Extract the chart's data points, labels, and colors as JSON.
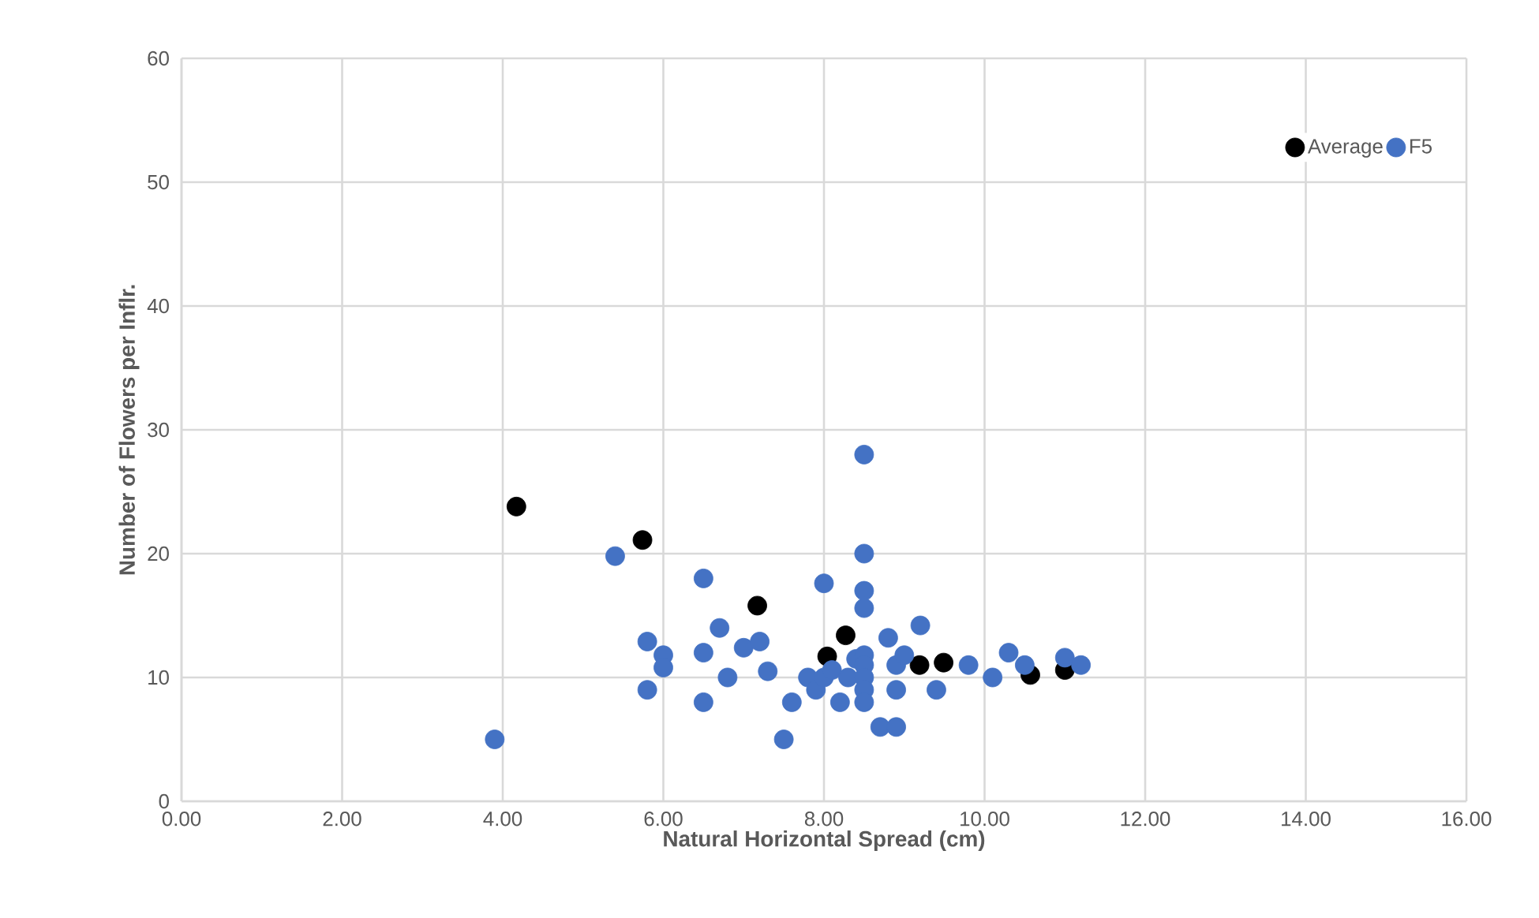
{
  "chart_data": {
    "type": "scatter",
    "xlabel": "Natural Horizontal Spread (cm)",
    "ylabel": "Number of Flowers per Inflr.",
    "xlim": [
      0,
      16
    ],
    "ylim": [
      0,
      60
    ],
    "xticks": [
      {
        "value": 0,
        "label": "0.00"
      },
      {
        "value": 2,
        "label": "2.00"
      },
      {
        "value": 4,
        "label": "4.00"
      },
      {
        "value": 6,
        "label": "6.00"
      },
      {
        "value": 8,
        "label": "8.00"
      },
      {
        "value": 10,
        "label": "10.00"
      },
      {
        "value": 12,
        "label": "12.00"
      },
      {
        "value": 14,
        "label": "14.00"
      },
      {
        "value": 16,
        "label": "16.00"
      }
    ],
    "yticks": [
      0,
      10,
      20,
      30,
      40,
      50,
      60
    ],
    "grid": true,
    "legend": "top right",
    "marker": "circle",
    "series": [
      {
        "name": "Average",
        "color": "#000000",
        "x": [
          4.17,
          5.74,
          7.17,
          8.04,
          8.27,
          9.19,
          9.49,
          10.57,
          11.0
        ],
        "values": [
          23.8,
          21.1,
          15.8,
          11.7,
          13.4,
          11.0,
          11.2,
          10.2,
          10.6
        ]
      },
      {
        "name": "F5",
        "color": "#4472c4",
        "x": [
          3.9,
          5.4,
          5.8,
          5.8,
          6.0,
          6.0,
          6.5,
          6.5,
          6.5,
          6.7,
          6.8,
          7.0,
          7.2,
          7.3,
          7.5,
          7.6,
          7.8,
          7.9,
          8.0,
          8.0,
          8.1,
          8.2,
          8.3,
          8.4,
          8.5,
          8.5,
          8.5,
          8.5,
          8.5,
          8.5,
          8.5,
          8.5,
          8.5,
          8.7,
          8.9,
          8.8,
          8.9,
          8.9,
          9.0,
          9.2,
          9.4,
          9.8,
          10.1,
          10.3,
          10.5,
          11.0,
          11.2
        ],
        "values": [
          5,
          19.8,
          12.9,
          9,
          11.8,
          10.8,
          18,
          12,
          8,
          14,
          10,
          12.4,
          12.9,
          10.5,
          5,
          8,
          10,
          9,
          17.6,
          10,
          10.6,
          8,
          10,
          11.5,
          28,
          20,
          17,
          15.6,
          11.8,
          11,
          10,
          9,
          8,
          6,
          6,
          13.2,
          11,
          9,
          11.8,
          14.2,
          9,
          11,
          10,
          12,
          11,
          11.6,
          11
        ]
      }
    ]
  }
}
